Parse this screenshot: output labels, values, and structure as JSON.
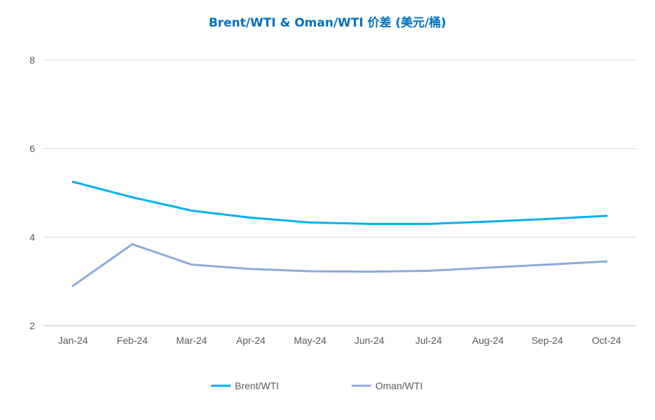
{
  "chart_data": {
    "type": "line",
    "title": "Brent/WTI & Oman/WTI 价差 (美元/桶)",
    "categories": [
      "Jan-24",
      "Feb-24",
      "Mar-24",
      "Apr-24",
      "May-24",
      "Jun-24",
      "Jul-24",
      "Aug-24",
      "Sep-24",
      "Oct-24"
    ],
    "series": [
      {
        "name": "Brent/WTI",
        "color": "#00b0f0",
        "values": [
          5.25,
          4.9,
          4.6,
          4.44,
          4.33,
          4.3,
          4.3,
          4.35,
          4.41,
          4.48
        ]
      },
      {
        "name": "Oman/WTI",
        "color": "#8eaadb",
        "values": [
          2.9,
          3.84,
          3.38,
          3.28,
          3.23,
          3.22,
          3.24,
          3.31,
          3.38,
          3.45
        ]
      }
    ],
    "ylim": [
      2,
      8
    ],
    "yticks": [
      2,
      4,
      6,
      8
    ],
    "grid": true,
    "legend_position": "bottom"
  }
}
